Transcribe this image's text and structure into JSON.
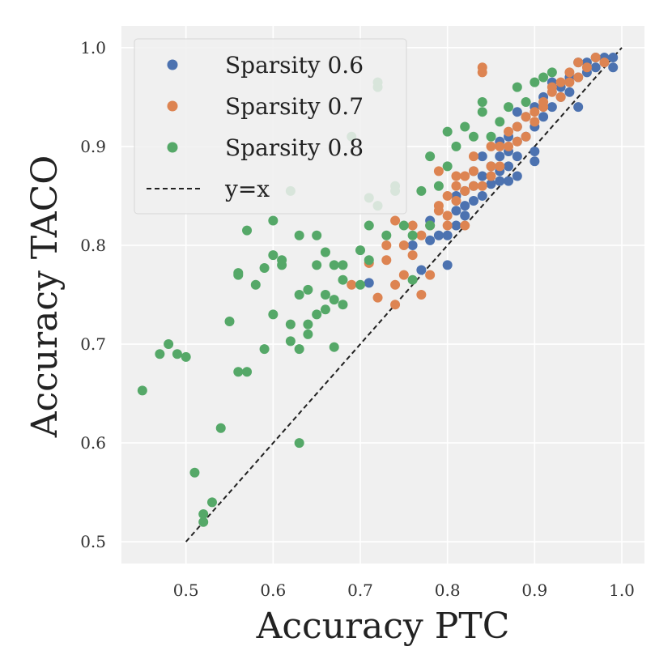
{
  "chart_data": {
    "type": "scatter",
    "title": "",
    "xlabel": "Accuracy PTC",
    "ylabel": "Accuracy TACO",
    "xlim": [
      0.426,
      1.026
    ],
    "ylim": [
      0.478,
      1.022
    ],
    "xticks": [
      0.5,
      0.6,
      0.7,
      0.8,
      0.9,
      1.0
    ],
    "yticks": [
      0.5,
      0.6,
      0.7,
      0.8,
      0.9,
      1.0
    ],
    "xtick_labels": [
      "0.5",
      "0.6",
      "0.7",
      "0.8",
      "0.9",
      "1.0"
    ],
    "ytick_labels": [
      "0.5",
      "0.6",
      "0.7",
      "0.8",
      "0.9",
      "1.0"
    ],
    "grid": true,
    "legend_position": "top-left",
    "reference_line": {
      "name": "y=x",
      "from": [
        0.5,
        0.5
      ],
      "to": [
        1.0,
        1.0
      ],
      "color": "#222222",
      "style": "dashed"
    },
    "series": [
      {
        "name": "Sparsity 0.6",
        "color": "#4c72b0",
        "points": [
          [
            0.71,
            0.762
          ],
          [
            0.76,
            0.8
          ],
          [
            0.77,
            0.775
          ],
          [
            0.78,
            0.805
          ],
          [
            0.78,
            0.825
          ],
          [
            0.79,
            0.81
          ],
          [
            0.8,
            0.81
          ],
          [
            0.8,
            0.78
          ],
          [
            0.81,
            0.82
          ],
          [
            0.81,
            0.85
          ],
          [
            0.82,
            0.855
          ],
          [
            0.82,
            0.84
          ],
          [
            0.83,
            0.86
          ],
          [
            0.83,
            0.845
          ],
          [
            0.83,
            0.875
          ],
          [
            0.84,
            0.85
          ],
          [
            0.84,
            0.87
          ],
          [
            0.84,
            0.89
          ],
          [
            0.85,
            0.862
          ],
          [
            0.85,
            0.88
          ],
          [
            0.86,
            0.875
          ],
          [
            0.86,
            0.89
          ],
          [
            0.86,
            0.905
          ],
          [
            0.87,
            0.895
          ],
          [
            0.87,
            0.88
          ],
          [
            0.87,
            0.91
          ],
          [
            0.88,
            0.905
          ],
          [
            0.88,
            0.89
          ],
          [
            0.88,
            0.92
          ],
          [
            0.89,
            0.91
          ],
          [
            0.89,
            0.93
          ],
          [
            0.9,
            0.92
          ],
          [
            0.9,
            0.94
          ],
          [
            0.9,
            0.895
          ],
          [
            0.91,
            0.93
          ],
          [
            0.91,
            0.95
          ],
          [
            0.92,
            0.94
          ],
          [
            0.92,
            0.965
          ],
          [
            0.93,
            0.95
          ],
          [
            0.93,
            0.96
          ],
          [
            0.94,
            0.955
          ],
          [
            0.94,
            0.97
          ],
          [
            0.95,
            0.97
          ],
          [
            0.95,
            0.94
          ],
          [
            0.96,
            0.975
          ],
          [
            0.96,
            0.985
          ],
          [
            0.97,
            0.98
          ],
          [
            0.97,
            0.99
          ],
          [
            0.98,
            0.985
          ],
          [
            0.98,
            0.99
          ],
          [
            0.99,
            0.98
          ],
          [
            0.99,
            0.99
          ],
          [
            0.95,
            0.985
          ],
          [
            0.86,
            0.865
          ],
          [
            0.88,
            0.87
          ],
          [
            0.87,
            0.865
          ],
          [
            0.9,
            0.885
          ],
          [
            0.82,
            0.83
          ],
          [
            0.81,
            0.835
          ],
          [
            0.88,
            0.935
          ]
        ]
      },
      {
        "name": "Sparsity 0.7",
        "color": "#dd8452",
        "points": [
          [
            0.69,
            0.76
          ],
          [
            0.71,
            0.782
          ],
          [
            0.72,
            0.747
          ],
          [
            0.73,
            0.8
          ],
          [
            0.74,
            0.74
          ],
          [
            0.74,
            0.76
          ],
          [
            0.75,
            0.77
          ],
          [
            0.75,
            0.8
          ],
          [
            0.76,
            0.79
          ],
          [
            0.77,
            0.75
          ],
          [
            0.77,
            0.81
          ],
          [
            0.78,
            0.77
          ],
          [
            0.78,
            0.82
          ],
          [
            0.79,
            0.835
          ],
          [
            0.79,
            0.84
          ],
          [
            0.8,
            0.83
          ],
          [
            0.8,
            0.85
          ],
          [
            0.8,
            0.82
          ],
          [
            0.81,
            0.845
          ],
          [
            0.81,
            0.86
          ],
          [
            0.82,
            0.855
          ],
          [
            0.82,
            0.87
          ],
          [
            0.82,
            0.82
          ],
          [
            0.83,
            0.86
          ],
          [
            0.83,
            0.875
          ],
          [
            0.84,
            0.98
          ],
          [
            0.84,
            0.975
          ],
          [
            0.84,
            0.86
          ],
          [
            0.85,
            0.88
          ],
          [
            0.85,
            0.87
          ],
          [
            0.86,
            0.9
          ],
          [
            0.86,
            0.88
          ],
          [
            0.87,
            0.9
          ],
          [
            0.87,
            0.915
          ],
          [
            0.88,
            0.905
          ],
          [
            0.88,
            0.92
          ],
          [
            0.89,
            0.93
          ],
          [
            0.89,
            0.91
          ],
          [
            0.9,
            0.925
          ],
          [
            0.9,
            0.935
          ],
          [
            0.91,
            0.94
          ],
          [
            0.91,
            0.945
          ],
          [
            0.92,
            0.955
          ],
          [
            0.92,
            0.96
          ],
          [
            0.93,
            0.965
          ],
          [
            0.93,
            0.95
          ],
          [
            0.94,
            0.965
          ],
          [
            0.94,
            0.975
          ],
          [
            0.95,
            0.97
          ],
          [
            0.95,
            0.985
          ],
          [
            0.96,
            0.98
          ],
          [
            0.97,
            0.99
          ],
          [
            0.98,
            0.985
          ],
          [
            0.73,
            0.785
          ],
          [
            0.74,
            0.825
          ],
          [
            0.76,
            0.82
          ],
          [
            0.79,
            0.875
          ],
          [
            0.81,
            0.87
          ],
          [
            0.85,
            0.9
          ],
          [
            0.83,
            0.89
          ]
        ]
      },
      {
        "name": "Sparsity 0.8",
        "color": "#55a868",
        "points": [
          [
            0.45,
            0.653
          ],
          [
            0.47,
            0.69
          ],
          [
            0.48,
            0.7
          ],
          [
            0.49,
            0.69
          ],
          [
            0.5,
            0.687
          ],
          [
            0.51,
            0.57
          ],
          [
            0.52,
            0.52
          ],
          [
            0.52,
            0.528
          ],
          [
            0.53,
            0.54
          ],
          [
            0.54,
            0.615
          ],
          [
            0.55,
            0.723
          ],
          [
            0.56,
            0.772
          ],
          [
            0.56,
            0.77
          ],
          [
            0.56,
            0.672
          ],
          [
            0.57,
            0.672
          ],
          [
            0.57,
            0.815
          ],
          [
            0.58,
            0.76
          ],
          [
            0.59,
            0.695
          ],
          [
            0.59,
            0.777
          ],
          [
            0.6,
            0.73
          ],
          [
            0.6,
            0.79
          ],
          [
            0.6,
            0.825
          ],
          [
            0.61,
            0.78
          ],
          [
            0.61,
            0.785
          ],
          [
            0.62,
            0.855
          ],
          [
            0.62,
            0.72
          ],
          [
            0.62,
            0.703
          ],
          [
            0.63,
            0.695
          ],
          [
            0.63,
            0.75
          ],
          [
            0.63,
            0.81
          ],
          [
            0.64,
            0.72
          ],
          [
            0.64,
            0.71
          ],
          [
            0.64,
            0.755
          ],
          [
            0.65,
            0.73
          ],
          [
            0.65,
            0.78
          ],
          [
            0.65,
            0.81
          ],
          [
            0.66,
            0.793
          ],
          [
            0.66,
            0.75
          ],
          [
            0.67,
            0.745
          ],
          [
            0.67,
            0.78
          ],
          [
            0.67,
            0.697
          ],
          [
            0.68,
            0.74
          ],
          [
            0.68,
            0.765
          ],
          [
            0.69,
            0.91
          ],
          [
            0.7,
            0.76
          ],
          [
            0.7,
            0.795
          ],
          [
            0.71,
            0.785
          ],
          [
            0.71,
            0.82
          ],
          [
            0.71,
            0.848
          ],
          [
            0.72,
            0.96
          ],
          [
            0.72,
            0.965
          ],
          [
            0.72,
            0.84
          ],
          [
            0.73,
            0.81
          ],
          [
            0.74,
            0.855
          ],
          [
            0.74,
            0.86
          ],
          [
            0.75,
            0.82
          ],
          [
            0.76,
            0.81
          ],
          [
            0.77,
            0.855
          ],
          [
            0.78,
            0.82
          ],
          [
            0.78,
            0.89
          ],
          [
            0.79,
            0.86
          ],
          [
            0.8,
            0.88
          ],
          [
            0.8,
            0.915
          ],
          [
            0.81,
            0.9
          ],
          [
            0.82,
            0.92
          ],
          [
            0.83,
            0.91
          ],
          [
            0.84,
            0.935
          ],
          [
            0.84,
            0.945
          ],
          [
            0.85,
            0.91
          ],
          [
            0.86,
            0.925
          ],
          [
            0.87,
            0.94
          ],
          [
            0.88,
            0.96
          ],
          [
            0.89,
            0.945
          ],
          [
            0.9,
            0.965
          ],
          [
            0.91,
            0.97
          ],
          [
            0.92,
            0.975
          ],
          [
            0.63,
            0.6
          ],
          [
            0.66,
            0.735
          ],
          [
            0.68,
            0.78
          ],
          [
            0.76,
            0.765
          ]
        ]
      }
    ]
  }
}
